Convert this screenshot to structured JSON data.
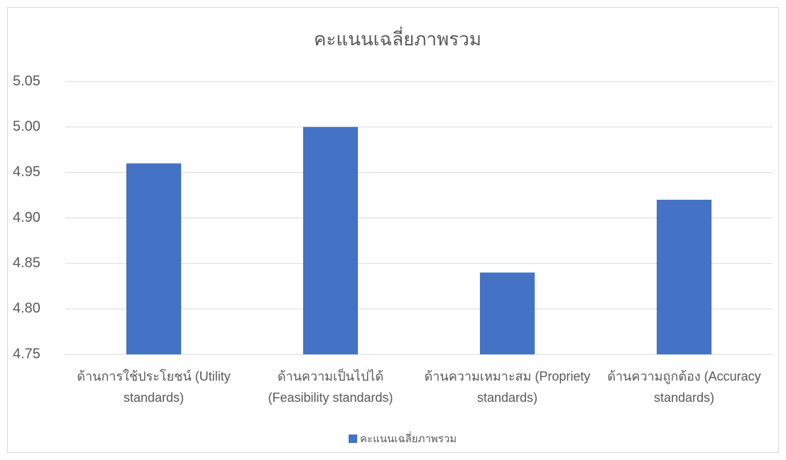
{
  "chart_data": {
    "type": "bar",
    "title": "คะแนนเฉลี่ยภาพรวม",
    "categories": [
      "ด้านการใช้ประโยชน์ (Utility standards)",
      "ด้านความเป็นไปได้ (Feasibility standards)",
      "ด้านความเหมาะสม (Propriety standards)",
      "ด้านความถูกต้อง (Accuracy standards)"
    ],
    "series": [
      {
        "name": "คะแนนเฉลี่ยภาพรวม",
        "color": "#4472c4",
        "values": [
          4.96,
          5.0,
          4.84,
          4.92
        ]
      }
    ],
    "ylim": [
      4.75,
      5.05
    ],
    "yticks": [
      4.75,
      {
        "value": 4.8,
        "label": "4.80"
      },
      4.85,
      {
        "value": 4.9,
        "label": "4.90"
      },
      4.95,
      {
        "value": 5.0,
        "label": "5.00"
      },
      5.05
    ],
    "grid": true,
    "legend": "bottom"
  }
}
